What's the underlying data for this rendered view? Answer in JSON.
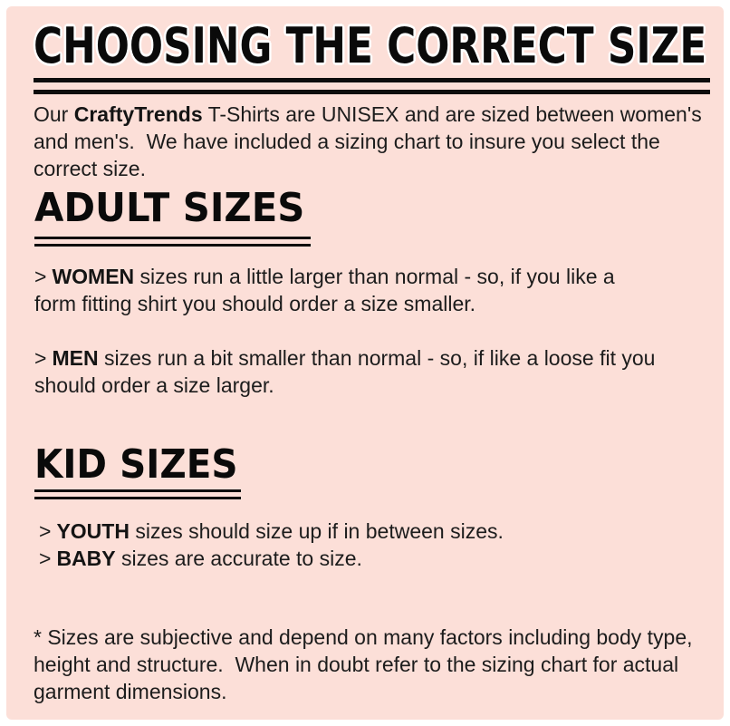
{
  "colors": {
    "page_border": "#ffffff",
    "panel_background": "#fcdfd8",
    "text": "#1c1c1c",
    "heading": "#0a0a0a"
  },
  "title": "CHOOSING THE CORRECT SIZE",
  "intro": {
    "prefix": "Our ",
    "brand": "CraftyTrends",
    "rest": " T-Shirts are UNISEX and are sized between women's and men's.  We have included a sizing chart to insure you select the correct size."
  },
  "sections": [
    {
      "heading": "ADULT SIZES",
      "items": [
        {
          "marker": ">",
          "term": "WOMEN",
          "text": " sizes run a little larger than normal - so, if you like a form fitting shirt you should order a size smaller."
        },
        {
          "marker": ">",
          "term": "MEN",
          "text": " sizes run a bit smaller than normal - so, if like a loose fit you should order a size larger."
        }
      ]
    },
    {
      "heading": "KID SIZES",
      "items": [
        {
          "marker": ">",
          "term": "YOUTH",
          "text": " sizes should size up if in between sizes."
        },
        {
          "marker": ">",
          "term": "BABY",
          "text": " sizes are accurate to size."
        }
      ]
    }
  ],
  "footnote": "* Sizes are subjective and depend on many factors including body type, height and structure.  When in doubt refer to the sizing chart for actual garment dimensions."
}
